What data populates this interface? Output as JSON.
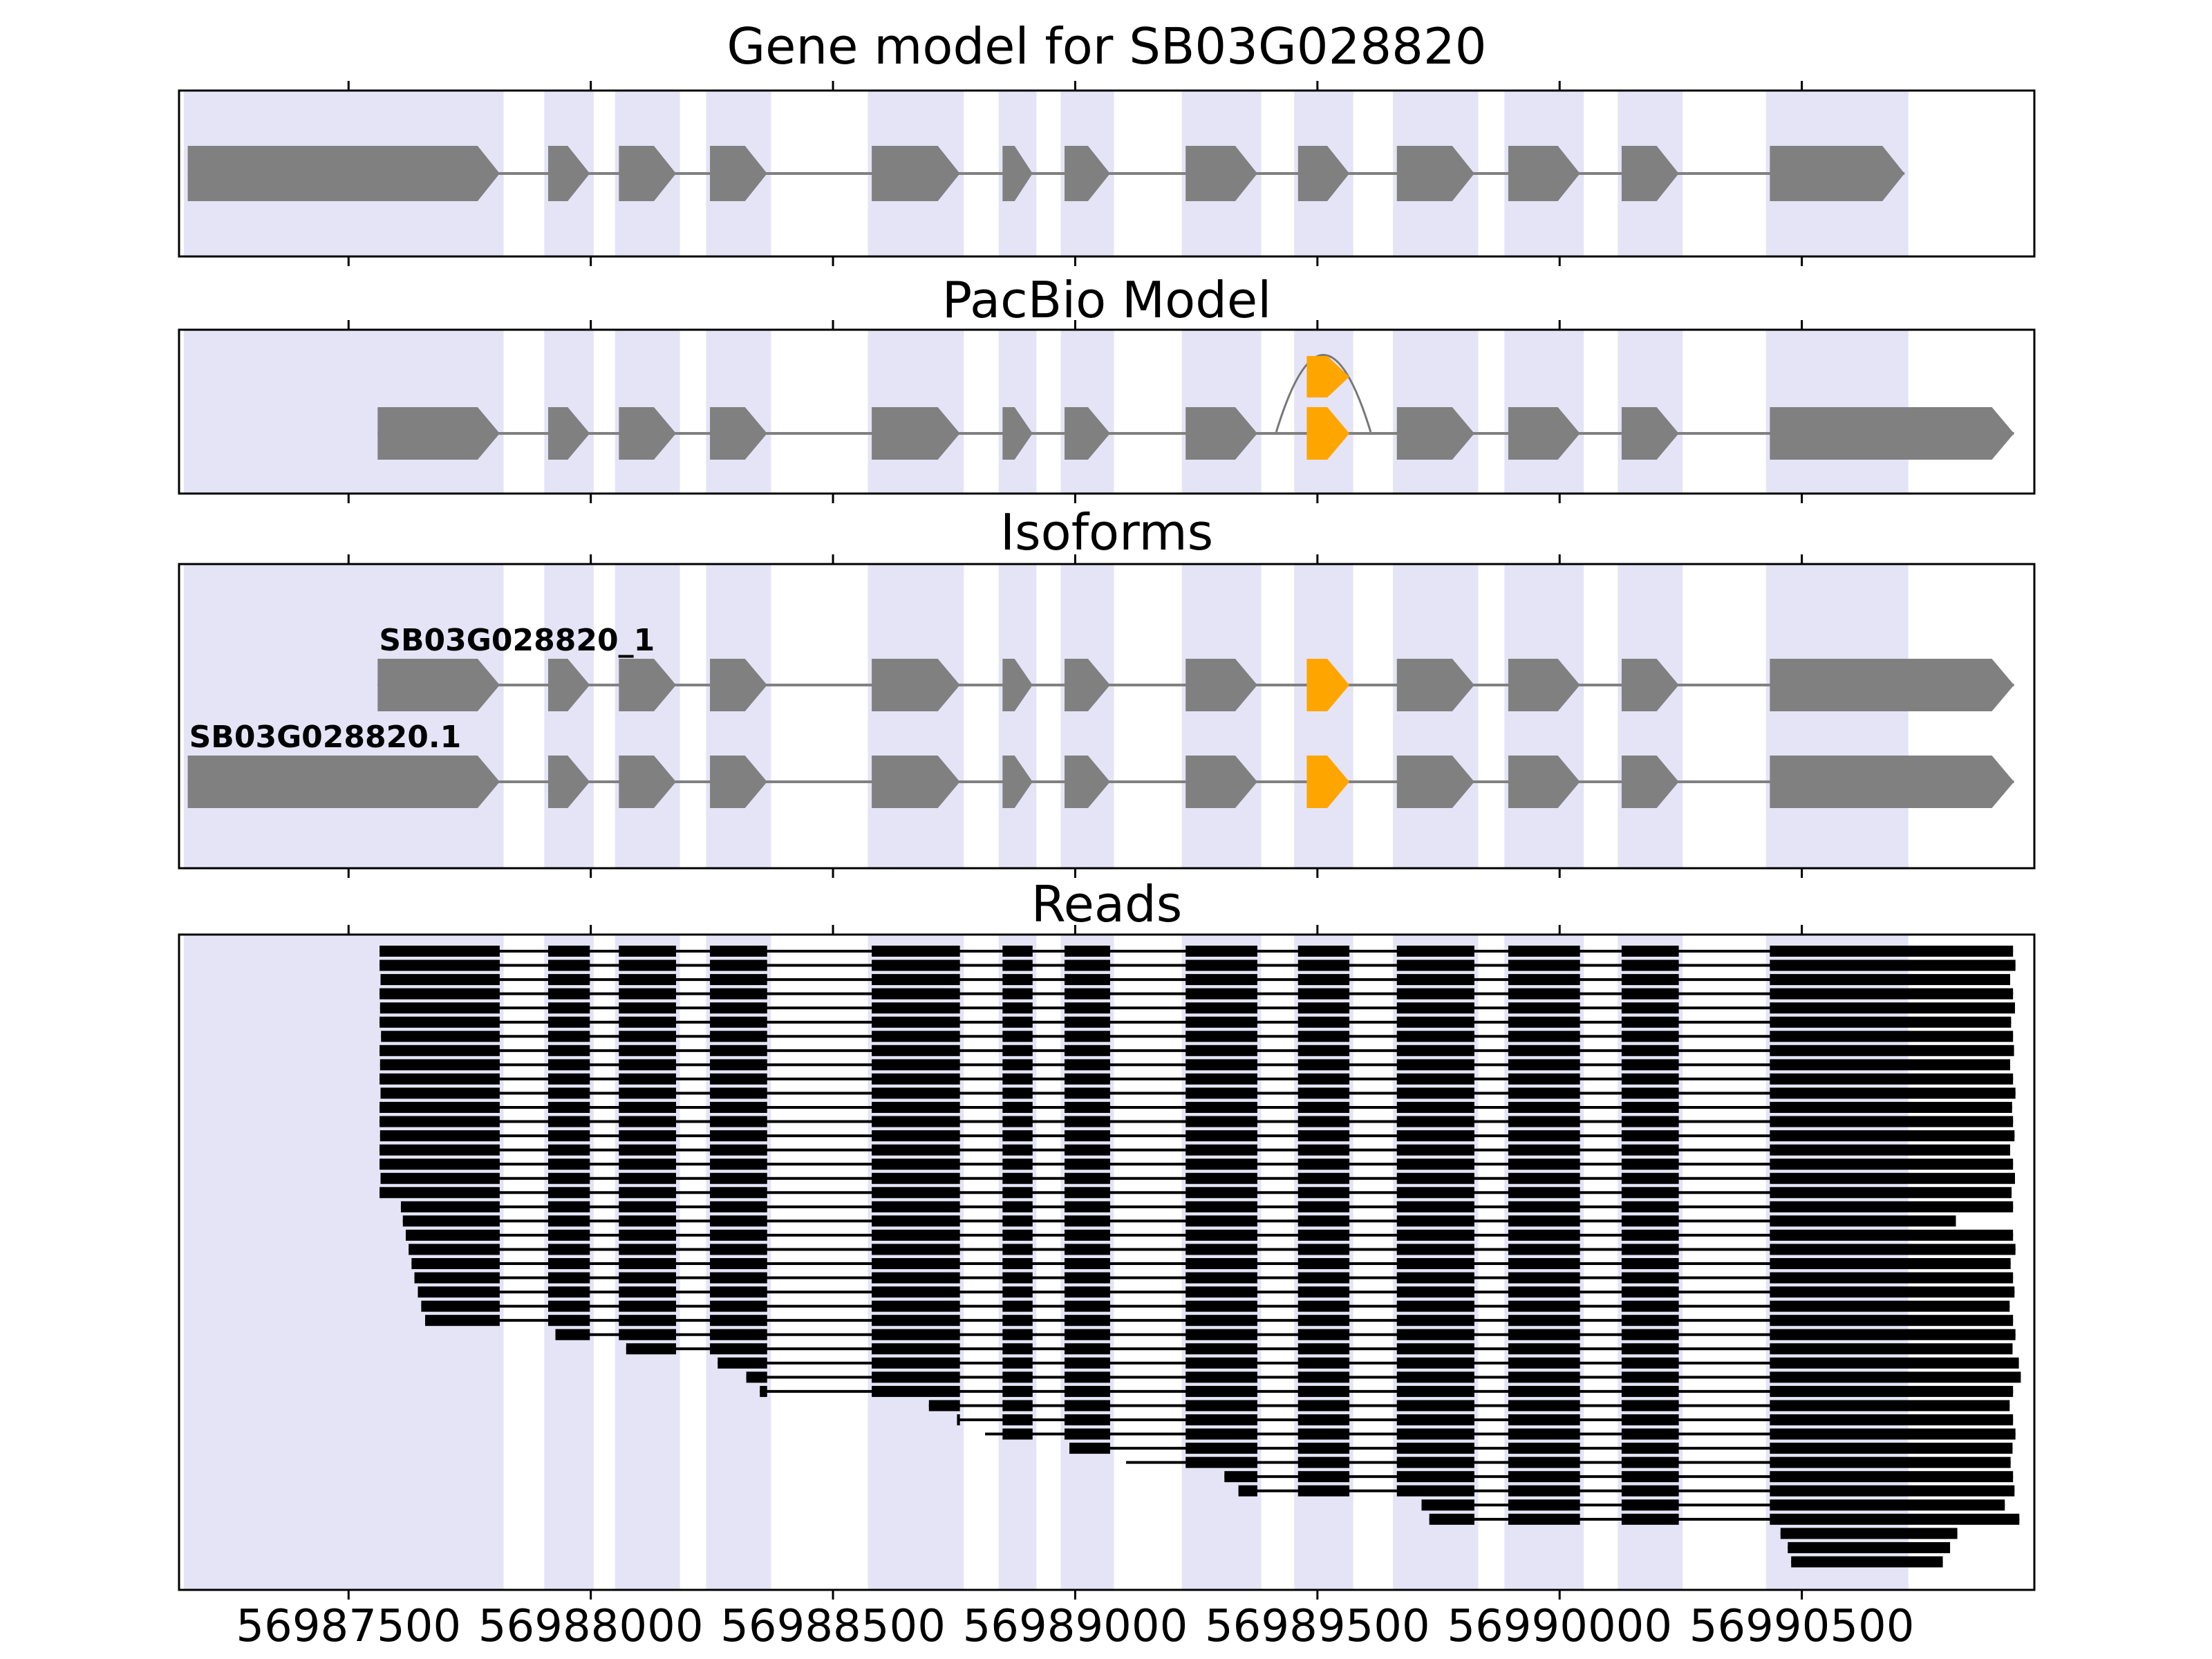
{
  "panels": {
    "gene_model": {
      "title": "Gene model for SB03G028820"
    },
    "pacbio": {
      "title": "PacBio Model"
    },
    "isoforms": {
      "title": "Isoforms"
    },
    "reads": {
      "title": "Reads"
    }
  },
  "chart_data": {
    "type": "other",
    "subtype": "gene-structure-track-plot",
    "gene_id": "SB03G028820",
    "xlim": [
      56987150,
      56990980
    ],
    "xticks": [
      56987500,
      56988000,
      56988500,
      56989000,
      56989500,
      56990000,
      56990500
    ],
    "xtick_labels": [
      "56987500",
      "56988000",
      "56988500",
      "56989000",
      "56989500",
      "56990000",
      "56990500"
    ],
    "highlight_color": "#e4e4f6",
    "exon_color": "#808080",
    "novel_exon_color": "#ffa500",
    "intron_line_color": "#808080",
    "read_color": "#000000",
    "highlight_regions": [
      [
        56987160,
        56987820
      ],
      [
        56987904,
        56988006
      ],
      [
        56988050,
        56988184
      ],
      [
        56988238,
        56988372
      ],
      [
        56988572,
        56988770
      ],
      [
        56988842,
        56988920
      ],
      [
        56988970,
        56989080
      ],
      [
        56989220,
        56989384
      ],
      [
        56989452,
        56989574
      ],
      [
        56989656,
        56989832
      ],
      [
        56989886,
        56990050
      ],
      [
        56990120,
        56990254
      ],
      [
        56990426,
        56990720
      ]
    ],
    "gene_model": {
      "name": "SB03G028820",
      "strand": "+",
      "exons": [
        [
          56987168,
          56987812
        ],
        [
          56987912,
          56987998
        ],
        [
          56988058,
          56988176
        ],
        [
          56988246,
          56988364
        ],
        [
          56988580,
          56988762
        ],
        [
          56988850,
          56988912
        ],
        [
          56988978,
          56989072
        ],
        [
          56989228,
          56989376
        ],
        [
          56989460,
          56989566
        ],
        [
          56989664,
          56989824
        ],
        [
          56989894,
          56990042
        ],
        [
          56990128,
          56990246
        ],
        [
          56990434,
          56990712
        ]
      ]
    },
    "pacbio_model": {
      "exons": [
        [
          56987560,
          56987812
        ],
        [
          56987912,
          56987998
        ],
        [
          56988058,
          56988176
        ],
        [
          56988246,
          56988364
        ],
        [
          56988580,
          56988762
        ],
        [
          56988850,
          56988912
        ],
        [
          56988978,
          56989072
        ],
        [
          56989228,
          56989376
        ],
        [
          56989478,
          56989566
        ],
        [
          56989664,
          56989824
        ],
        [
          56989894,
          56990042
        ],
        [
          56990128,
          56990246
        ],
        [
          56990434,
          56990938
        ]
      ],
      "novel_exon_index": 8,
      "skipped_exon": [
        56989478,
        56989566
      ],
      "junction_arc": [
        56989415,
        56989610
      ]
    },
    "isoforms": [
      {
        "name": "SB03G028820_1",
        "novel_exon_index": 8,
        "exons": [
          [
            56987560,
            56987812
          ],
          [
            56987912,
            56987998
          ],
          [
            56988058,
            56988176
          ],
          [
            56988246,
            56988364
          ],
          [
            56988580,
            56988762
          ],
          [
            56988850,
            56988912
          ],
          [
            56988978,
            56989072
          ],
          [
            56989228,
            56989376
          ],
          [
            56989478,
            56989566
          ],
          [
            56989664,
            56989824
          ],
          [
            56989894,
            56990042
          ],
          [
            56990128,
            56990246
          ],
          [
            56990434,
            56990938
          ]
        ]
      },
      {
        "name": "SB03G028820.1",
        "novel_exon_index": 8,
        "exons": [
          [
            56987168,
            56987812
          ],
          [
            56987912,
            56987998
          ],
          [
            56988058,
            56988176
          ],
          [
            56988246,
            56988364
          ],
          [
            56988580,
            56988762
          ],
          [
            56988850,
            56988912
          ],
          [
            56988978,
            56989072
          ],
          [
            56989228,
            56989376
          ],
          [
            56989478,
            56989566
          ],
          [
            56989664,
            56989824
          ],
          [
            56989894,
            56990042
          ],
          [
            56990128,
            56990246
          ],
          [
            56990434,
            56990938
          ]
        ]
      }
    ],
    "reads": {
      "exon_template": [
        [
          56987168,
          56987812
        ],
        [
          56987912,
          56987998
        ],
        [
          56988058,
          56988176
        ],
        [
          56988246,
          56988364
        ],
        [
          56988580,
          56988762
        ],
        [
          56988850,
          56988912
        ],
        [
          56988978,
          56989072
        ],
        [
          56989228,
          56989376
        ],
        [
          56989460,
          56989566
        ],
        [
          56989664,
          56989824
        ],
        [
          56989894,
          56990042
        ],
        [
          56990128,
          56990246
        ],
        [
          56990434,
          56990956
        ]
      ],
      "alignments": [
        [
          56987564,
          56990936
        ],
        [
          56987564,
          56990941
        ],
        [
          56987566,
          56990930
        ],
        [
          56987564,
          56990936
        ],
        [
          56987565,
          56990940
        ],
        [
          56987564,
          56990932
        ],
        [
          56987567,
          56990936
        ],
        [
          56987564,
          56990938
        ],
        [
          56987565,
          56990930
        ],
        [
          56987564,
          56990936
        ],
        [
          56987566,
          56990941
        ],
        [
          56987564,
          56990934
        ],
        [
          56987564,
          56990936
        ],
        [
          56987565,
          56990939
        ],
        [
          56987564,
          56990930
        ],
        [
          56987564,
          56990936
        ],
        [
          56987566,
          56990940
        ],
        [
          56987564,
          56990933
        ],
        [
          56987608,
          56990936
        ],
        [
          56987612,
          56990818
        ],
        [
          56987618,
          56990936
        ],
        [
          56987624,
          56990941
        ],
        [
          56987630,
          56990931
        ],
        [
          56987636,
          56990936
        ],
        [
          56987643,
          56990939
        ],
        [
          56987650,
          56990929
        ],
        [
          56987658,
          56990936
        ],
        [
          56987927,
          56990941
        ],
        [
          56988073,
          56990935
        ],
        [
          56988262,
          56990948
        ],
        [
          56988321,
          56990952
        ],
        [
          56988349,
          56990936
        ],
        [
          56988698,
          56990929
        ],
        [
          56988756,
          56990936
        ],
        [
          56988814,
          56990941
        ],
        [
          56988988,
          56990935
        ],
        [
          56989105,
          56990931
        ],
        [
          56989308,
          56990936
        ],
        [
          56989337,
          56990939
        ],
        [
          56989715,
          56990919
        ],
        [
          56989731,
          56990949
        ],
        [
          56990456,
          56990821
        ],
        [
          56990471,
          56990806
        ],
        [
          56990478,
          56990791
        ]
      ]
    }
  }
}
